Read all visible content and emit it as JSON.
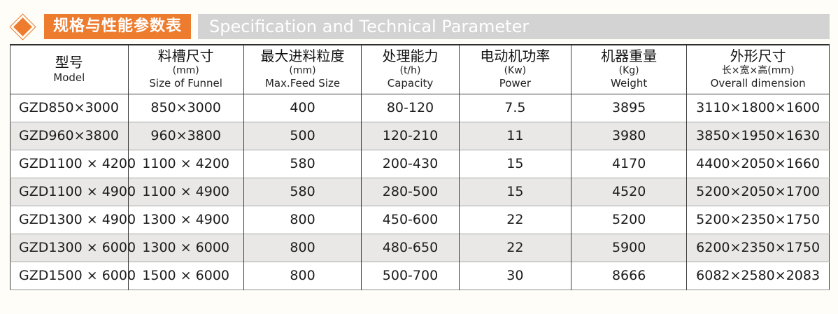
{
  "header": {
    "title_zh": "规格与性能参数表",
    "title_en": "Specification and Technical Parameter",
    "accent_color": "#ed7c2f",
    "band_color": "#d3d3d3"
  },
  "table": {
    "columns": [
      {
        "zh": "型号",
        "sub": "",
        "en": "Model"
      },
      {
        "zh": "料槽尺寸",
        "sub": "(mm)",
        "en": "Size of Funnel"
      },
      {
        "zh": "最大进料粒度",
        "sub": "(mm)",
        "en": "Max.Feed Size"
      },
      {
        "zh": "处理能力",
        "sub": "(t/h)",
        "en": "Capacity"
      },
      {
        "zh": "电动机功率",
        "sub": "(Kw)",
        "en": "Power"
      },
      {
        "zh": "机器重量",
        "sub": "(Kg)",
        "en": "Weight"
      },
      {
        "zh": "外形尺寸",
        "sub": "长×宽×高(mm)",
        "en": "Overall dimension"
      }
    ],
    "col_widths": [
      "14.4%",
      "14.1%",
      "14.4%",
      "11.9%",
      "13.7%",
      "14.1%",
      "17.4%"
    ],
    "stripe_color": "#e9e8e6",
    "rows": [
      [
        "GZD850×3000",
        "850×3000",
        "400",
        "80-120",
        "7.5",
        "3895",
        "3110×1800×1600"
      ],
      [
        "GZD960×3800",
        "960×3800",
        "500",
        "120-210",
        "11",
        "3980",
        "3850×1950×1630"
      ],
      [
        "GZD1100 × 4200",
        "1100 × 4200",
        "580",
        "200-430",
        "15",
        "4170",
        "4400×2050×1660"
      ],
      [
        "GZD1100 × 4900",
        "1100 × 4900",
        "580",
        "280-500",
        "15",
        "4520",
        "5200×2050×1700"
      ],
      [
        "GZD1300 × 4900",
        "1300 × 4900",
        "800",
        "450-600",
        "22",
        "5200",
        "5200×2350×1750"
      ],
      [
        "GZD1300 × 6000",
        "1300 × 6000",
        "800",
        "480-650",
        "22",
        "5900",
        "6200×2350×1750"
      ],
      [
        "GZD1500 × 6000",
        "1500 × 6000",
        "800",
        "500-700",
        "30",
        "8666",
        "6082×2580×2083"
      ]
    ]
  }
}
